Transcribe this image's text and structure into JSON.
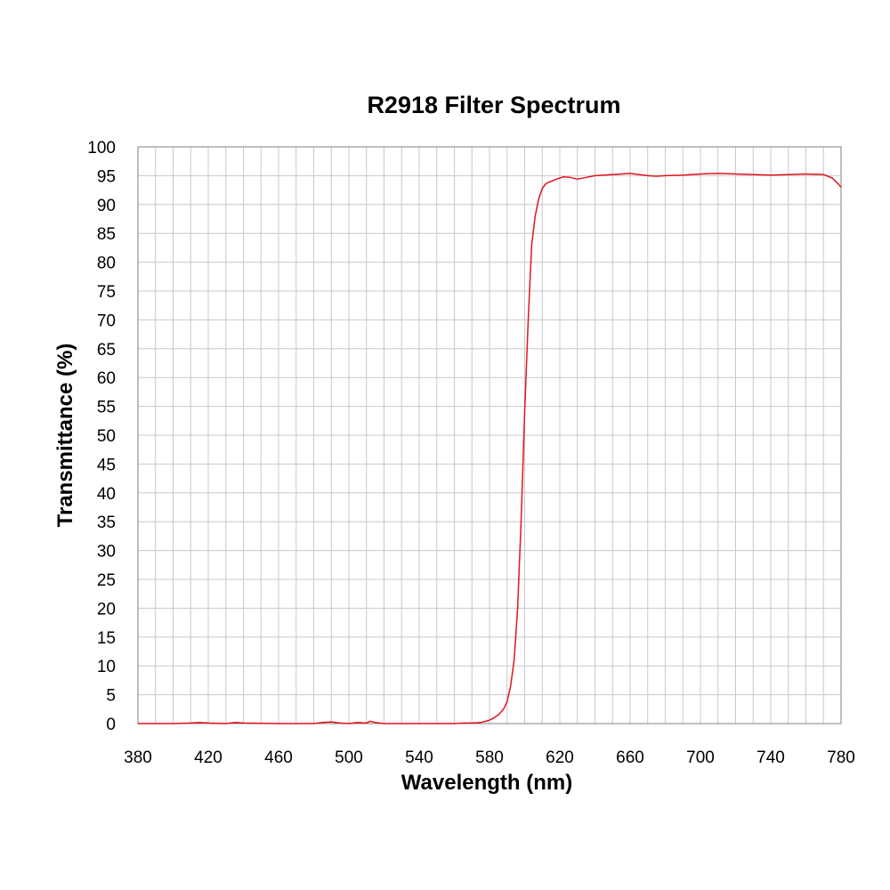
{
  "chart_data": {
    "type": "line",
    "title": "R2918 Filter Spectrum",
    "xlabel": "Wavelength (nm)",
    "ylabel": "Transmittance (%)",
    "xlim": [
      380,
      780
    ],
    "ylim": [
      0,
      100
    ],
    "xticks": [
      380,
      420,
      460,
      500,
      540,
      580,
      620,
      660,
      700,
      740,
      780
    ],
    "yticks": [
      0,
      5,
      10,
      15,
      20,
      25,
      30,
      35,
      40,
      45,
      50,
      55,
      60,
      65,
      70,
      75,
      80,
      85,
      90,
      95,
      100
    ],
    "x_minor_step": 10,
    "grid": true,
    "legend": "none",
    "colors": {
      "series": "#e0151b",
      "grid": "#c8c8c8",
      "frame": "#808080"
    },
    "series": [
      {
        "x": [
          380,
          400,
          410,
          415,
          420,
          430,
          435,
          440,
          460,
          480,
          485,
          490,
          495,
          500,
          505,
          510,
          512,
          515,
          520,
          540,
          560,
          565,
          570,
          575,
          578,
          580,
          582,
          585,
          588,
          590,
          592,
          594,
          596,
          598,
          600,
          602,
          604,
          606,
          608,
          610,
          612,
          614,
          616,
          618,
          620,
          622,
          626,
          630,
          635,
          640,
          645,
          650,
          655,
          660,
          665,
          670,
          675,
          680,
          690,
          700,
          710,
          720,
          730,
          740,
          750,
          760,
          770,
          775,
          778,
          780
        ],
        "y": [
          0,
          0,
          0.1,
          0.2,
          0.1,
          0,
          0.2,
          0.1,
          0,
          0,
          0.2,
          0.3,
          0.1,
          0,
          0.2,
          0.1,
          0.4,
          0.2,
          0,
          0,
          0,
          0.1,
          0.1,
          0.2,
          0.4,
          0.6,
          0.9,
          1.5,
          2.5,
          3.8,
          6.5,
          11,
          20,
          35,
          54,
          70,
          83,
          88,
          91,
          92.8,
          93.6,
          93.9,
          94.1,
          94.4,
          94.6,
          94.8,
          94.7,
          94.4,
          94.7,
          95,
          95.1,
          95.2,
          95.3,
          95.4,
          95.2,
          95,
          94.9,
          95,
          95.1,
          95.3,
          95.4,
          95.3,
          95.2,
          95.1,
          95.2,
          95.3,
          95.2,
          94.6,
          93.7,
          93
        ]
      }
    ]
  }
}
